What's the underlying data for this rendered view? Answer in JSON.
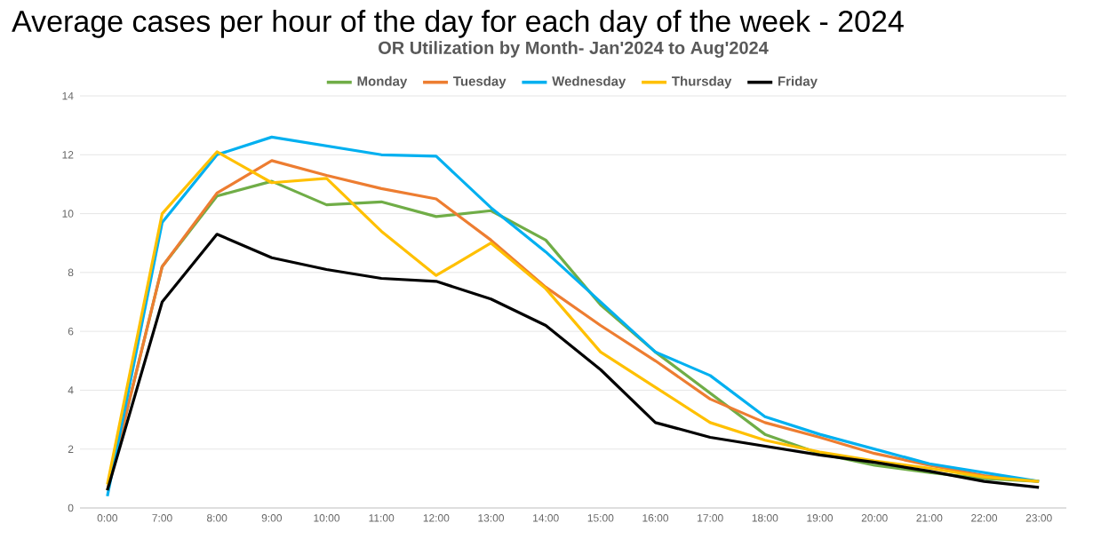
{
  "chart_data": {
    "type": "line",
    "title": "Average cases per hour of the day for each day of the week - 2024",
    "subtitle": "OR Utilization by Month- Jan'2024 to Aug'2024",
    "categories": [
      "0:00",
      "7:00",
      "8:00",
      "9:00",
      "10:00",
      "11:00",
      "12:00",
      "13:00",
      "14:00",
      "15:00",
      "16:00",
      "17:00",
      "18:00",
      "19:00",
      "20:00",
      "21:00",
      "22:00",
      "23:00"
    ],
    "series": [
      {
        "name": "Monday",
        "color": "#70ad47",
        "values": [
          0.6,
          8.2,
          10.6,
          11.1,
          10.3,
          10.4,
          9.9,
          10.1,
          9.1,
          6.9,
          5.3,
          3.9,
          2.5,
          1.85,
          1.45,
          1.2,
          1.0,
          0.9
        ]
      },
      {
        "name": "Tuesday",
        "color": "#ed7d31",
        "values": [
          0.6,
          8.2,
          10.7,
          11.8,
          11.3,
          10.85,
          10.5,
          9.1,
          7.5,
          6.2,
          5.0,
          3.7,
          2.9,
          2.4,
          1.85,
          1.45,
          1.1,
          0.9
        ]
      },
      {
        "name": "Wednesday",
        "color": "#00b0f0",
        "values": [
          0.4,
          9.7,
          12.0,
          12.6,
          12.3,
          12.0,
          11.95,
          10.2,
          8.7,
          7.0,
          5.3,
          4.5,
          3.1,
          2.5,
          2.0,
          1.5,
          1.2,
          0.9
        ]
      },
      {
        "name": "Thursday",
        "color": "#ffc000",
        "values": [
          0.8,
          10.0,
          12.1,
          11.05,
          11.2,
          9.4,
          7.9,
          9.0,
          7.45,
          5.3,
          4.1,
          2.9,
          2.3,
          1.9,
          1.6,
          1.35,
          1.05,
          0.9
        ]
      },
      {
        "name": "Friday",
        "color": "#000000",
        "values": [
          0.6,
          7.0,
          9.3,
          8.5,
          8.1,
          7.8,
          7.7,
          7.1,
          6.2,
          4.7,
          2.9,
          2.4,
          2.1,
          1.8,
          1.55,
          1.25,
          0.9,
          0.7
        ]
      }
    ],
    "ylim": [
      0,
      14
    ],
    "yticks": [
      0,
      2,
      4,
      6,
      8,
      10,
      12,
      14
    ],
    "grid": "y",
    "legend": "top",
    "marker": "none",
    "line_style": "solid"
  }
}
